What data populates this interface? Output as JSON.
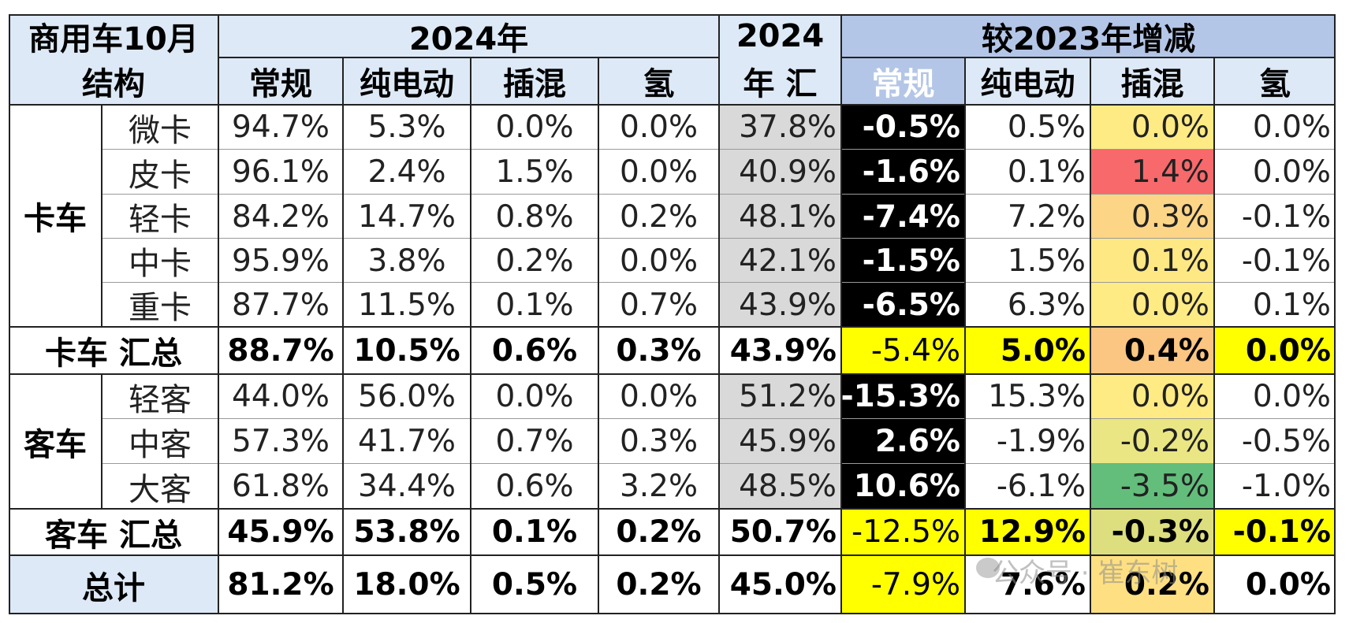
{
  "chart_data": {
    "type": "table",
    "header": {
      "corner_line1": "商用车10月",
      "corner_line2": "结构",
      "group_2024": "2024年",
      "total_2024_line1": "2024",
      "total_2024_line2": "年 汇",
      "group_change": "较2023年增减",
      "sub_2024": [
        "常规",
        "纯电动",
        "插混",
        "氢"
      ],
      "sub_change": [
        "常规",
        "纯电动",
        "插混",
        "氢"
      ]
    },
    "groups": [
      {
        "name": "卡车",
        "rows": [
          {
            "label": "微卡",
            "share": [
              "94.7%",
              "5.3%",
              "0.0%",
              "0.0%"
            ],
            "total": "37.8%",
            "change": [
              "-0.5%",
              "0.5%",
              "0.0%",
              "0.0%"
            ]
          },
          {
            "label": "皮卡",
            "share": [
              "96.1%",
              "2.4%",
              "1.5%",
              "0.0%"
            ],
            "total": "40.9%",
            "change": [
              "-1.6%",
              "0.1%",
              "1.4%",
              "0.0%"
            ]
          },
          {
            "label": "轻卡",
            "share": [
              "84.2%",
              "14.7%",
              "0.8%",
              "0.2%"
            ],
            "total": "48.1%",
            "change": [
              "-7.4%",
              "7.2%",
              "0.3%",
              "-0.1%"
            ]
          },
          {
            "label": "中卡",
            "share": [
              "95.9%",
              "3.8%",
              "0.2%",
              "0.0%"
            ],
            "total": "42.1%",
            "change": [
              "-1.5%",
              "1.5%",
              "0.1%",
              "-0.1%"
            ]
          },
          {
            "label": "重卡",
            "share": [
              "87.7%",
              "11.5%",
              "0.1%",
              "0.7%"
            ],
            "total": "43.9%",
            "change": [
              "-6.5%",
              "6.3%",
              "0.0%",
              "0.1%"
            ]
          }
        ],
        "summary": {
          "label": "卡车 汇总",
          "share": [
            "88.7%",
            "10.5%",
            "0.6%",
            "0.3%"
          ],
          "total": "43.9%",
          "change": [
            "-5.4%",
            "5.0%",
            "0.4%",
            "0.0%"
          ]
        }
      },
      {
        "name": "客车",
        "rows": [
          {
            "label": "轻客",
            "share": [
              "44.0%",
              "56.0%",
              "0.0%",
              "0.0%"
            ],
            "total": "51.2%",
            "change": [
              "-15.3%",
              "15.3%",
              "0.0%",
              "0.0%"
            ]
          },
          {
            "label": "中客",
            "share": [
              "57.3%",
              "41.7%",
              "0.7%",
              "0.3%"
            ],
            "total": "45.9%",
            "change": [
              "2.6%",
              "-1.9%",
              "-0.2%",
              "-0.5%"
            ]
          },
          {
            "label": "大客",
            "share": [
              "61.8%",
              "34.4%",
              "0.6%",
              "3.2%"
            ],
            "total": "48.5%",
            "change": [
              "10.6%",
              "-6.1%",
              "-3.5%",
              "-1.0%"
            ]
          }
        ],
        "summary": {
          "label": "客车 汇总",
          "share": [
            "45.9%",
            "53.8%",
            "0.1%",
            "0.2%"
          ],
          "total": "50.7%",
          "change": [
            "-12.5%",
            "12.9%",
            "-0.3%",
            "-0.1%"
          ]
        }
      }
    ],
    "grand_total": {
      "label": "总计",
      "share": [
        "81.2%",
        "18.0%",
        "0.5%",
        "0.2%"
      ],
      "total": "45.0%",
      "change": [
        "-7.9%",
        "7.6%",
        "0.2%",
        "0.0%"
      ]
    }
  },
  "watermark": "公众号 · 崔东树",
  "colors": {
    "header_light": "#dde9f6",
    "header_dark": "#b4c6e7",
    "header_dark_text": "#ffffff",
    "total_column": "#d9d9d9",
    "change_regular": "#000000",
    "change_regular_text": "#ffffff",
    "summary_highlight": "#ffff00",
    "phev_scale": {
      "1.4": "#f8696b",
      "0.4": "#fbc582",
      "0.3": "#fdd587",
      "0.2": "#fee082",
      "0.1": "#fee883",
      "0.0": "#ffeb84",
      "-0.1": "#f5e884",
      "-0.2": "#eae683",
      "-0.3": "#dddf7e",
      "-3.5": "#63be7b"
    }
  }
}
